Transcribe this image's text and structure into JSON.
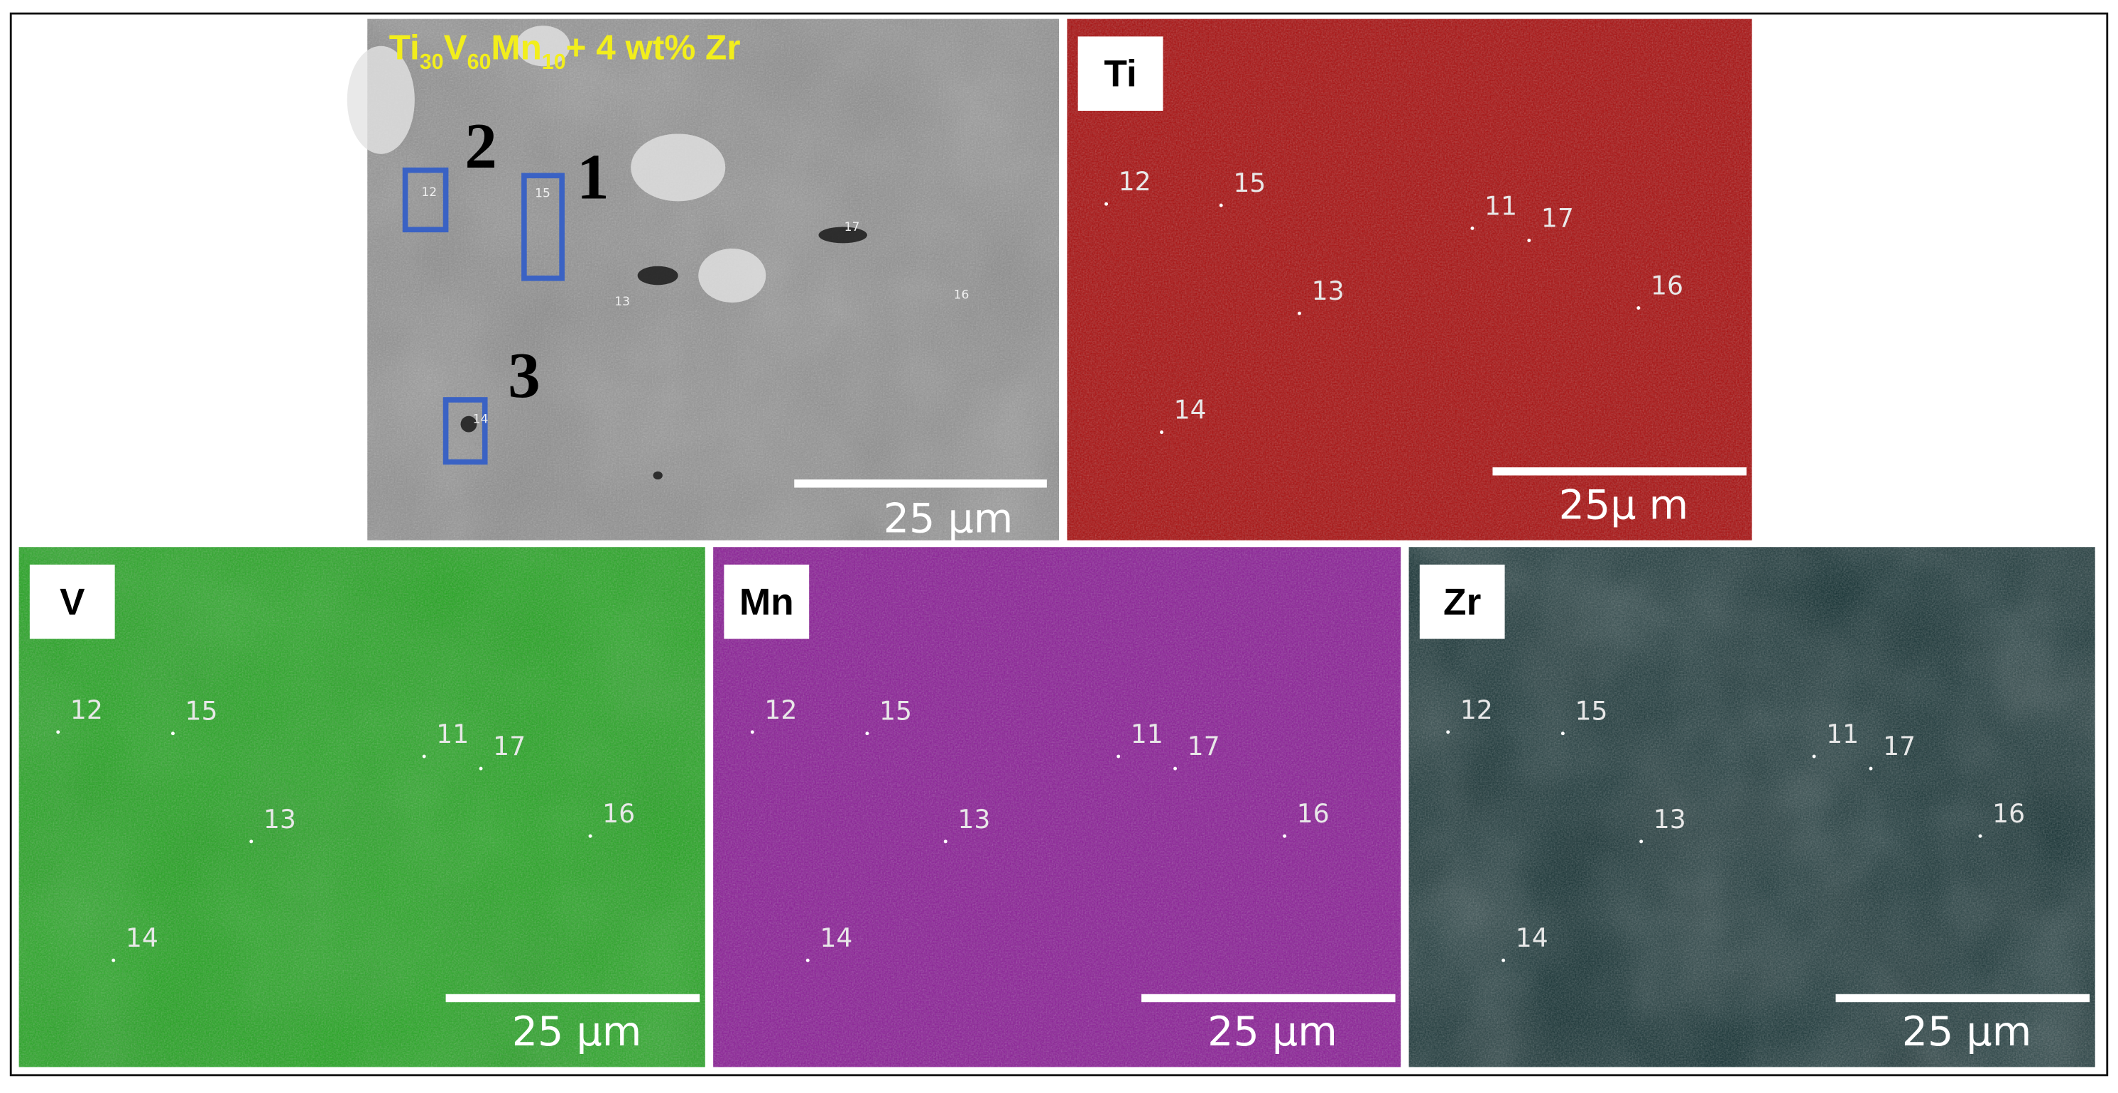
{
  "sem": {
    "title": [
      "Ti",
      "30",
      "V",
      "60",
      "Mn",
      "10",
      "+ 4 wt% Zr"
    ],
    "regions": [
      "1",
      "2",
      "3"
    ],
    "points": [
      "12",
      "15",
      "17",
      "13",
      "16",
      "14"
    ],
    "scale_bar": "25 µm"
  },
  "maps": [
    {
      "element": "Ti",
      "points": [
        "12",
        "15",
        "11",
        "17",
        "13",
        "16",
        "14"
      ],
      "scale_bar": "25µ m"
    },
    {
      "element": "V",
      "points": [
        "12",
        "15",
        "11",
        "17",
        "13",
        "16",
        "14"
      ],
      "scale_bar": "25 µm"
    },
    {
      "element": "Mn",
      "points": [
        "12",
        "15",
        "11",
        "17",
        "13",
        "16",
        "14"
      ],
      "scale_bar": "25 µm"
    },
    {
      "element": "Zr",
      "points": [
        "12",
        "15",
        "11",
        "17",
        "13",
        "16",
        "14"
      ],
      "scale_bar": "25 µm"
    }
  ]
}
